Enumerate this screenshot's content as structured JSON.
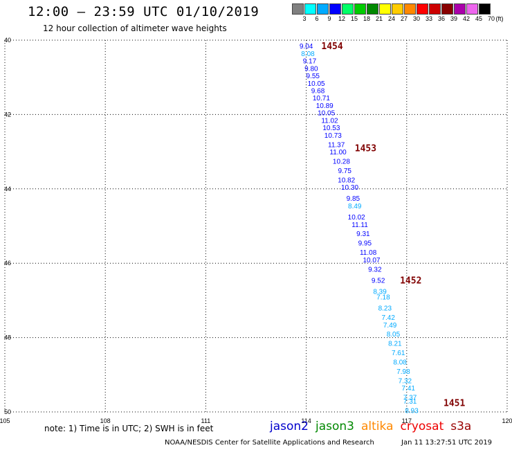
{
  "header": {
    "title": "12:00 – 23:59 UTC 01/10/2019",
    "subtitle": "12 hour collection of altimeter wave heights"
  },
  "legend": {
    "unit": "(ft)",
    "bins": [
      {
        "label": "3",
        "color": "#808080"
      },
      {
        "label": "6",
        "color": "#00ffff"
      },
      {
        "label": "9",
        "color": "#00aaff"
      },
      {
        "label": "12",
        "color": "#0000ff"
      },
      {
        "label": "15",
        "color": "#00ff66"
      },
      {
        "label": "18",
        "color": "#00cc00"
      },
      {
        "label": "21",
        "color": "#008800"
      },
      {
        "label": "24",
        "color": "#ffff00"
      },
      {
        "label": "27",
        "color": "#ffcc00"
      },
      {
        "label": "30",
        "color": "#ff8800"
      },
      {
        "label": "33",
        "color": "#ff0000"
      },
      {
        "label": "36",
        "color": "#cc0000"
      },
      {
        "label": "39",
        "color": "#880000"
      },
      {
        "label": "42",
        "color": "#aa00aa"
      },
      {
        "label": "45",
        "color": "#ee66ee"
      },
      {
        "label": "70",
        "color": "#000000"
      }
    ]
  },
  "map": {
    "lon_ticks": [
      "105",
      "108",
      "111",
      "114",
      "117",
      "120"
    ],
    "lat_ticks": [
      "40",
      "42",
      "44",
      "46",
      "48",
      "50"
    ],
    "pass_color": "#800000",
    "passes": [
      {
        "label": "1454",
        "lon": 114.45,
        "lat": -40.15
      },
      {
        "label": "1453",
        "lon": 115.45,
        "lat": -42.9
      },
      {
        "label": "1452",
        "lon": 116.8,
        "lat": -46.45
      },
      {
        "label": "1451",
        "lon": 118.1,
        "lat": -49.75
      }
    ],
    "observations": [
      {
        "v": "9.04",
        "lon": 114.0,
        "lat": -40.15,
        "c": "#0000ff"
      },
      {
        "v": "8.08",
        "lon": 114.05,
        "lat": -40.35,
        "c": "#00aaff"
      },
      {
        "v": "9.17",
        "lon": 114.1,
        "lat": -40.55,
        "c": "#0000ff"
      },
      {
        "v": "9.80",
        "lon": 114.15,
        "lat": -40.75,
        "c": "#0000ff"
      },
      {
        "v": "9.55",
        "lon": 114.2,
        "lat": -40.95,
        "c": "#0000ff"
      },
      {
        "v": "10.05",
        "lon": 114.3,
        "lat": -41.15,
        "c": "#0000ff"
      },
      {
        "v": "9.68",
        "lon": 114.35,
        "lat": -41.35,
        "c": "#0000ff"
      },
      {
        "v": "10.71",
        "lon": 114.45,
        "lat": -41.55,
        "c": "#0000ff"
      },
      {
        "v": "10.89",
        "lon": 114.55,
        "lat": -41.75,
        "c": "#0000ff"
      },
      {
        "v": "10.05",
        "lon": 114.6,
        "lat": -41.95,
        "c": "#0000ff"
      },
      {
        "v": "11.02",
        "lon": 114.7,
        "lat": -42.15,
        "c": "#0000ff"
      },
      {
        "v": "10.53",
        "lon": 114.75,
        "lat": -42.35,
        "c": "#0000ff"
      },
      {
        "v": "10.73",
        "lon": 114.8,
        "lat": -42.55,
        "c": "#0000ff"
      },
      {
        "v": "11.37",
        "lon": 114.9,
        "lat": -42.8,
        "c": "#0000ff"
      },
      {
        "v": "11.00",
        "lon": 114.95,
        "lat": -43.0,
        "c": "#0000ff"
      },
      {
        "v": "10.28",
        "lon": 115.05,
        "lat": -43.25,
        "c": "#0000ff"
      },
      {
        "v": "9.75",
        "lon": 115.15,
        "lat": -43.5,
        "c": "#0000ff"
      },
      {
        "v": "10.82",
        "lon": 115.2,
        "lat": -43.75,
        "c": "#0000ff"
      },
      {
        "v": "10.30",
        "lon": 115.3,
        "lat": -43.95,
        "c": "#0000ff"
      },
      {
        "v": "9.85",
        "lon": 115.4,
        "lat": -44.25,
        "c": "#0000ff"
      },
      {
        "v": "8.49",
        "lon": 115.45,
        "lat": -44.45,
        "c": "#00aaff"
      },
      {
        "v": "10.02",
        "lon": 115.5,
        "lat": -44.75,
        "c": "#0000ff"
      },
      {
        "v": "11.11",
        "lon": 115.6,
        "lat": -44.95,
        "c": "#0000ff"
      },
      {
        "v": "9.31",
        "lon": 115.7,
        "lat": -45.2,
        "c": "#0000ff"
      },
      {
        "v": "9.95",
        "lon": 115.75,
        "lat": -45.45,
        "c": "#0000ff"
      },
      {
        "v": "11.08",
        "lon": 115.85,
        "lat": -45.7,
        "c": "#0000ff"
      },
      {
        "v": "10.07",
        "lon": 115.95,
        "lat": -45.9,
        "c": "#0000ff"
      },
      {
        "v": "9.32",
        "lon": 116.05,
        "lat": -46.15,
        "c": "#0000ff"
      },
      {
        "v": "9.52",
        "lon": 116.15,
        "lat": -46.45,
        "c": "#0000ff"
      },
      {
        "v": "8.39",
        "lon": 116.2,
        "lat": -46.75,
        "c": "#00aaff"
      },
      {
        "v": "7.18",
        "lon": 116.3,
        "lat": -46.9,
        "c": "#00aaff"
      },
      {
        "v": "8.23",
        "lon": 116.35,
        "lat": -47.2,
        "c": "#00aaff"
      },
      {
        "v": "7.42",
        "lon": 116.45,
        "lat": -47.45,
        "c": "#00aaff"
      },
      {
        "v": "7.49",
        "lon": 116.5,
        "lat": -47.65,
        "c": "#00aaff"
      },
      {
        "v": "8.05",
        "lon": 116.6,
        "lat": -47.9,
        "c": "#00aaff"
      },
      {
        "v": "8.21",
        "lon": 116.65,
        "lat": -48.15,
        "c": "#00aaff"
      },
      {
        "v": "7.61",
        "lon": 116.75,
        "lat": -48.4,
        "c": "#00aaff"
      },
      {
        "v": "8.08",
        "lon": 116.8,
        "lat": -48.65,
        "c": "#00aaff"
      },
      {
        "v": "7.98",
        "lon": 116.9,
        "lat": -48.9,
        "c": "#00aaff"
      },
      {
        "v": "7.32",
        "lon": 116.95,
        "lat": -49.15,
        "c": "#00aaff"
      },
      {
        "v": "7.41",
        "lon": 117.05,
        "lat": -49.35,
        "c": "#00aaff"
      },
      {
        "v": "7.37",
        "lon": 117.1,
        "lat": -49.6,
        "c": "#00aaff"
      },
      {
        "v": "7.31",
        "lon": 117.1,
        "lat": -49.7,
        "c": "#00aaff"
      },
      {
        "v": "8.93",
        "lon": 117.15,
        "lat": -49.95,
        "c": "#00aaff"
      }
    ]
  },
  "footer": {
    "note": "note:  1) Time is in UTC;  2) SWH is in feet",
    "satellites": [
      {
        "name": "jason2",
        "color": "#0000cc"
      },
      {
        "name": "jason3",
        "color": "#008800"
      },
      {
        "name": "altika",
        "color": "#ff8800"
      },
      {
        "name": "cryosat",
        "color": "#ee0000"
      },
      {
        "name": "s3a",
        "color": "#990000"
      }
    ],
    "credit": "NOAA/NESDIS Center for Satellite Applications and Research",
    "timestamp": "Jan 11 13:27:51 UTC 2019"
  }
}
